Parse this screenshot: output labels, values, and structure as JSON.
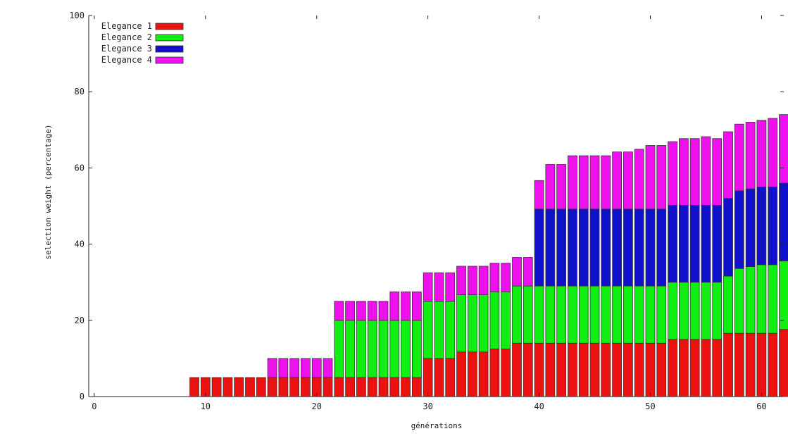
{
  "chart_data": {
    "type": "bar",
    "stacked": true,
    "title": "",
    "xlabel": "générations",
    "ylabel": "selection weight (percentage)",
    "xlim": [
      -0.5,
      62
    ],
    "ylim": [
      0,
      100
    ],
    "xticks": [
      0,
      10,
      20,
      30,
      40,
      50,
      60
    ],
    "yticks": [
      0,
      20,
      40,
      60,
      80,
      100
    ],
    "grid": false,
    "legend_position": "top-left",
    "x": [
      9,
      10,
      11,
      12,
      13,
      14,
      15,
      16,
      17,
      18,
      19,
      20,
      21,
      22,
      23,
      24,
      25,
      26,
      27,
      28,
      29,
      30,
      31,
      32,
      33,
      34,
      35,
      36,
      37,
      38,
      39,
      40,
      41,
      42,
      43,
      44,
      45,
      46,
      47,
      48,
      49,
      50,
      51,
      52,
      53,
      54,
      55,
      56,
      57,
      58,
      59,
      60,
      61,
      62
    ],
    "series": [
      {
        "name": "Elegance 1",
        "color": "#ee1111",
        "values": [
          5,
          5,
          5,
          5,
          5,
          5,
          5,
          5,
          5,
          5,
          5,
          5,
          5,
          5,
          5,
          5,
          5,
          5,
          5,
          5,
          5,
          10,
          10,
          10,
          11.7,
          11.7,
          11.7,
          12.5,
          12.5,
          14,
          14,
          14,
          14,
          14,
          14,
          14,
          14,
          14,
          14,
          14,
          14,
          14,
          14,
          15,
          15,
          15,
          15,
          15,
          16.6,
          16.6,
          16.6,
          16.6,
          16.6,
          17.6
        ]
      },
      {
        "name": "Elegance 2",
        "color": "#11ee11",
        "values": [
          0,
          0,
          0,
          0,
          0,
          0,
          0,
          0,
          0,
          0,
          0,
          0,
          0,
          15,
          15,
          15,
          15,
          15,
          15,
          15,
          15,
          15,
          15,
          15,
          15,
          15,
          15,
          15,
          15,
          15,
          15,
          15,
          15,
          15,
          15,
          15,
          15,
          15,
          15,
          15,
          15,
          15,
          15,
          15,
          15,
          15,
          15,
          15,
          15,
          17,
          17.5,
          18,
          18,
          18
        ]
      },
      {
        "name": "Elegance 3",
        "color": "#1111cc",
        "values": [
          0,
          0,
          0,
          0,
          0,
          0,
          0,
          0,
          0,
          0,
          0,
          0,
          0,
          0,
          0,
          0,
          0,
          0,
          0,
          0,
          0,
          0,
          0,
          0,
          0,
          0,
          0,
          0,
          0,
          0,
          0,
          20.2,
          20.2,
          20.2,
          20.2,
          20.2,
          20.2,
          20.2,
          20.2,
          20.2,
          20.2,
          20.2,
          20.2,
          20.2,
          20.2,
          20.2,
          20.2,
          20.2,
          20.4,
          20.4,
          20.4,
          20.4,
          20.4,
          20.4
        ]
      },
      {
        "name": "Elegance 4",
        "color": "#ee11ee",
        "values": [
          0,
          0,
          0,
          0,
          0,
          0,
          0,
          5,
          5,
          5,
          5,
          5,
          5,
          5,
          5,
          5,
          5,
          5,
          7.5,
          7.5,
          7.5,
          7.5,
          7.5,
          7.5,
          7.5,
          7.5,
          7.5,
          7.5,
          7.5,
          7.5,
          7.5,
          7.5,
          11.7,
          11.7,
          14,
          14,
          14,
          14,
          15,
          15,
          15.7,
          16.7,
          16.7,
          16.7,
          17.5,
          17.5,
          18,
          17.5,
          17.5,
          17.5,
          17.5,
          17.5,
          18,
          18
        ]
      }
    ]
  }
}
